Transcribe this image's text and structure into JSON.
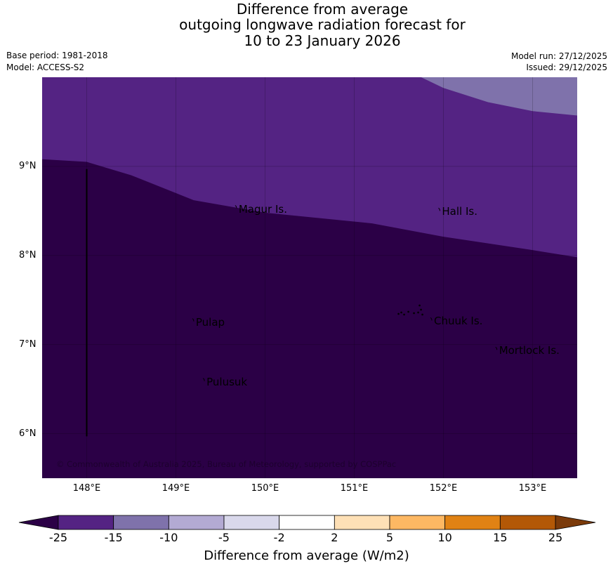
{
  "title": {
    "line1": "Difference from average",
    "line2": "outgoing longwave radiation forecast for",
    "line3": "10 to 23 January 2026"
  },
  "meta": {
    "base_period": "Base period: 1981-2018",
    "model": "Model: ACCESS-S2",
    "model_run": "Model run: 27/12/2025",
    "issued": "Issued: 29/12/2025"
  },
  "map": {
    "lon_range": [
      147.5,
      153.5
    ],
    "lat_range": [
      5.5,
      10.0
    ],
    "lat_labels": [
      {
        "value": 9,
        "text": "9°N"
      },
      {
        "value": 8,
        "text": "8°N"
      },
      {
        "value": 7,
        "text": "7°N"
      },
      {
        "value": 6,
        "text": "6°N"
      }
    ],
    "lon_labels": [
      {
        "value": 148,
        "text": "148°E"
      },
      {
        "value": 149,
        "text": "149°E"
      },
      {
        "value": 150,
        "text": "150°E"
      },
      {
        "value": 151,
        "text": "151°E"
      },
      {
        "value": 152,
        "text": "152°E"
      },
      {
        "value": 153,
        "text": "153°E"
      }
    ],
    "colors": {
      "below_minus25": "#2b0046",
      "minus25_to_minus15": "#542383",
      "minus15_to_minus10": "#7f72ab"
    },
    "zones": {
      "boundary_25": [
        [
          147.5,
          9.08
        ],
        [
          148.0,
          9.05
        ],
        [
          148.5,
          8.9
        ],
        [
          149.2,
          8.62
        ],
        [
          150.0,
          8.48
        ],
        [
          151.2,
          8.36
        ],
        [
          152.0,
          8.21
        ],
        [
          153.0,
          8.06
        ],
        [
          153.5,
          7.98
        ]
      ],
      "boundary_15": [
        [
          151.75,
          10.0
        ],
        [
          152.0,
          9.88
        ],
        [
          152.5,
          9.72
        ],
        [
          153.0,
          9.62
        ],
        [
          153.5,
          9.57
        ]
      ]
    },
    "places": [
      {
        "name": "Magur Is.",
        "lon": 149.68,
        "lat": 8.53
      },
      {
        "name": "Hall Is.",
        "lon": 151.96,
        "lat": 8.5
      },
      {
        "name": "Pulap",
        "lon": 149.2,
        "lat": 7.26
      },
      {
        "name": "Chuuk Is.",
        "lon": 151.87,
        "lat": 7.27
      },
      {
        "name": "Mortlock Is.",
        "lon": 152.6,
        "lat": 6.94
      },
      {
        "name": "Pulusuk",
        "lon": 149.32,
        "lat": 6.59
      }
    ],
    "meridian_line": {
      "lon": 148.0,
      "lat_from": 8.97,
      "lat_to": 5.97
    },
    "copyright": "© Commonwealth of Australia 2025, Bureau of Meteorology, supported by COSPPac"
  },
  "colorbar": {
    "label": "Difference from average (W/m2)",
    "ticks": [
      "-25",
      "-15",
      "-10",
      "-5",
      "-2",
      "2",
      "5",
      "10",
      "15",
      "25"
    ],
    "low_extend_color": "#2b0046",
    "high_extend_color": "#7b3a0a",
    "colors": [
      "#542383",
      "#7f72ab",
      "#b3aad3",
      "#d9d8eb",
      "#ffffff",
      "#fee0b6",
      "#fdb863",
      "#e08214",
      "#b35806"
    ]
  }
}
